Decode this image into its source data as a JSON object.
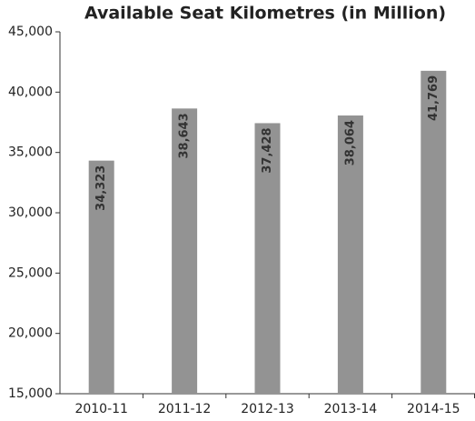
{
  "chart_data": {
    "type": "bar",
    "title": "Available Seat Kilometres (in Million)",
    "categories": [
      "2010-11",
      "2011-12",
      "2012-13",
      "2013-14",
      "2014-15"
    ],
    "values": [
      34323,
      38643,
      37428,
      38064,
      41769
    ],
    "value_labels": [
      "34,323",
      "38,643",
      "37,428",
      "38,064",
      "41,769"
    ],
    "color": "#939393",
    "ylim": [
      15000,
      45000
    ],
    "yticks": [
      {
        "value": 15000,
        "label": "15,000"
      },
      {
        "value": 20000,
        "label": "20,000"
      },
      {
        "value": 25000,
        "label": "25,000"
      },
      {
        "value": 30000,
        "label": "30,000"
      },
      {
        "value": 35000,
        "label": "35,000"
      },
      {
        "value": 40000,
        "label": "40,000"
      },
      {
        "value": 45000,
        "label": "45,000"
      }
    ],
    "grid": false
  }
}
